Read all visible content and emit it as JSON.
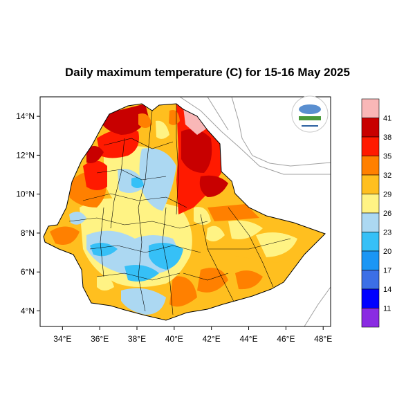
{
  "title": "Daily maximum temperature (C) for 15-16 May 2025",
  "map": {
    "x_ticks": [
      {
        "lon": 34,
        "label": "34°E"
      },
      {
        "lon": 36,
        "label": "36°E"
      },
      {
        "lon": 38,
        "label": "38°E"
      },
      {
        "lon": 40,
        "label": "40°E"
      },
      {
        "lon": 42,
        "label": "42°E"
      },
      {
        "lon": 44,
        "label": "44°E"
      },
      {
        "lon": 46,
        "label": "46°E"
      },
      {
        "lon": 48,
        "label": "48°E"
      }
    ],
    "y_ticks": [
      {
        "lat": 4,
        "label": "4°N"
      },
      {
        "lat": 6,
        "label": "6°N"
      },
      {
        "lat": 8,
        "label": "8°N"
      },
      {
        "lat": 10,
        "label": "10°N"
      },
      {
        "lat": 12,
        "label": "12°N"
      },
      {
        "lat": 14,
        "label": "14°N"
      }
    ],
    "lon_range": [
      32.8,
      48.4
    ],
    "lat_range": [
      3.2,
      15.0
    ]
  },
  "colorbar": {
    "colors": [
      "#f9b7b7",
      "#c80000",
      "#ff1a00",
      "#ff8000",
      "#ffbf1f",
      "#fff384",
      "#acd8f2",
      "#36c0f7",
      "#1a96f5",
      "#3c6fe6",
      "#0000ff",
      "#8a2be2"
    ],
    "labels": [
      "41",
      "38",
      "35",
      "32",
      "29",
      "26",
      "23",
      "20",
      "17",
      "14",
      "11"
    ]
  },
  "logo": {
    "name": "Ethiopian Meteorology Institute logo"
  },
  "colors": {
    "ocean_line": "#a0a0a0",
    "admin_line": "#000000",
    "cool": "#acd8f2",
    "mild": "#fff384",
    "warm": "#ffbf1f",
    "hot": "#ff8000",
    "very_hot": "#ff1a00",
    "extreme": "#c80000",
    "blue": "#36c0f7"
  }
}
